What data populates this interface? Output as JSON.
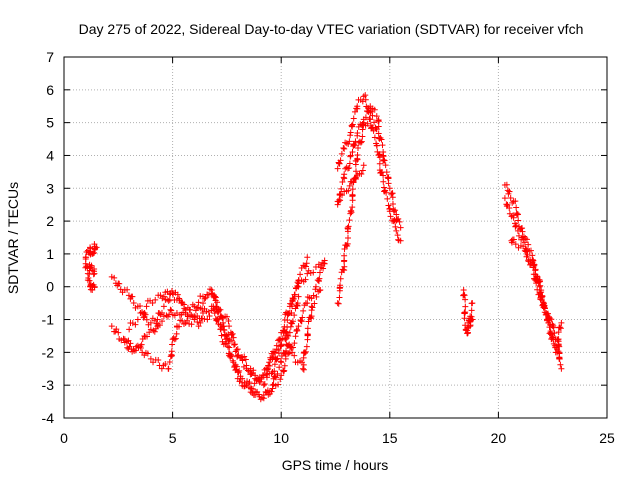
{
  "chart_data": {
    "type": "scatter",
    "title": "Day 275 of 2022, Sidereal Day-to-day VTEC variation (SDTVAR) for receiver vfch",
    "xlabel": "GPS time / hours",
    "ylabel": "SDTVAR / TECUs",
    "xlim": [
      0,
      25
    ],
    "ylim": [
      -4,
      7
    ],
    "xticks": [
      0,
      5,
      10,
      15,
      20,
      25
    ],
    "yticks": [
      -4,
      -3,
      -2,
      -1,
      0,
      1,
      2,
      3,
      4,
      5,
      6,
      7
    ],
    "grid": true,
    "marker": "+",
    "marker_color": "#ff0000",
    "series": [
      {
        "name": "SDTVAR",
        "segments": [
          {
            "x": [
              1.0,
              1.1,
              1.2,
              1.3,
              1.4,
              1.5
            ],
            "y": [
              0.9,
              1.1,
              1.2,
              1.0,
              1.3,
              1.2
            ]
          },
          {
            "x": [
              1.0,
              1.1,
              1.2,
              1.3,
              1.4
            ],
            "y": [
              0.7,
              0.4,
              0.6,
              0.5,
              0.4
            ]
          },
          {
            "x": [
              1.1,
              1.2,
              1.3,
              1.4
            ],
            "y": [
              0.2,
              0.0,
              -0.1,
              0.0
            ]
          },
          {
            "x": [
              2.2,
              2.5,
              2.8,
              3.1,
              3.4,
              3.7,
              4.0,
              4.3,
              4.6,
              4.9,
              5.2,
              5.6,
              6.0,
              6.4,
              6.8,
              7.2,
              7.6,
              8.0,
              8.4,
              8.8,
              9.2,
              9.6,
              10.0,
              10.4,
              10.8,
              11.2
            ],
            "y": [
              0.3,
              0.1,
              -0.1,
              -0.3,
              -0.6,
              -0.9,
              -1.1,
              -1.0,
              -0.6,
              -0.2,
              -0.4,
              -0.7,
              -0.9,
              -0.5,
              -0.2,
              -0.9,
              -1.6,
              -2.1,
              -2.5,
              -2.7,
              -3.0,
              -2.6,
              -1.8,
              -0.8,
              0.2,
              0.9
            ]
          },
          {
            "x": [
              2.2,
              2.5,
              2.8,
              3.1,
              3.4,
              3.7,
              4.0,
              4.3,
              4.6,
              4.9,
              5.2,
              5.6,
              6.0,
              6.4,
              6.8,
              7.2,
              7.6,
              8.0,
              8.4,
              8.8,
              9.2,
              9.6,
              10.0,
              10.4,
              10.8
            ],
            "y": [
              -1.2,
              -1.4,
              -1.7,
              -1.9,
              -1.8,
              -1.5,
              -1.3,
              -1.2,
              -0.9,
              -0.7,
              -0.8,
              -1.1,
              -1.0,
              -0.8,
              -0.6,
              -1.3,
              -2.1,
              -2.6,
              -3.0,
              -3.3,
              -3.4,
              -3.0,
              -2.3,
              -1.4,
              -0.3
            ]
          },
          {
            "x": [
              2.8,
              3.2,
              3.6,
              4.0,
              4.4,
              4.8,
              5.2,
              5.6,
              6.0,
              6.4,
              6.8,
              7.2,
              7.6,
              8.0,
              8.4,
              8.8,
              9.2,
              9.6,
              10.0,
              10.4,
              10.8,
              11.2,
              11.6,
              12.0
            ],
            "y": [
              -1.6,
              -1.9,
              -2.0,
              -2.2,
              -2.4,
              -2.5,
              -1.2,
              -0.8,
              -0.6,
              -0.3,
              -0.1,
              -0.7,
              -1.2,
              -1.9,
              -2.4,
              -2.8,
              -2.7,
              -2.2,
              -1.4,
              -0.6,
              0.1,
              0.4,
              0.6,
              0.7
            ]
          },
          {
            "x": [
              3.0,
              3.4,
              3.8,
              4.2,
              4.6,
              5.0,
              5.4,
              5.8,
              6.2,
              6.6,
              7.0,
              7.4,
              7.8,
              8.2,
              8.6,
              9.0,
              9.4,
              9.8,
              10.2,
              10.6,
              11.0,
              11.4,
              11.8
            ],
            "y": [
              -1.3,
              -1.0,
              -0.6,
              -0.4,
              -0.3,
              -0.2,
              -0.5,
              -0.9,
              -1.2,
              -1.0,
              -0.6,
              -1.5,
              -2.3,
              -2.8,
              -3.1,
              -2.9,
              -2.4,
              -1.9,
              -1.6,
              -2.1,
              -2.5,
              -0.6,
              -0.1
            ]
          },
          {
            "x": [
              8.0,
              8.4,
              8.8,
              9.2,
              9.6,
              10.0,
              10.4,
              10.8,
              11.2,
              11.6,
              12.0
            ],
            "y": [
              -2.8,
              -3.0,
              -3.2,
              -3.3,
              -3.1,
              -2.7,
              -2.0,
              -1.2,
              -0.5,
              0.0,
              0.8
            ]
          },
          {
            "x": [
              12.6,
              12.9,
              13.2,
              13.5,
              13.8,
              14.1,
              14.4,
              14.7,
              15.0,
              15.3,
              15.5
            ],
            "y": [
              -0.5,
              0.8,
              2.3,
              3.9,
              5.0,
              5.1,
              4.3,
              3.2,
              2.3,
              1.7,
              1.4
            ]
          },
          {
            "x": [
              12.6,
              12.9,
              13.2,
              13.5,
              13.8,
              14.1,
              14.4,
              14.7,
              15.0,
              15.3,
              15.5
            ],
            "y": [
              2.5,
              3.3,
              4.0,
              4.6,
              5.1,
              5.5,
              5.2,
              4.0,
              3.0,
              2.2,
              1.8
            ]
          },
          {
            "x": [
              12.6,
              12.9,
              13.2,
              13.5,
              13.8,
              14.1,
              14.4
            ],
            "y": [
              3.6,
              4.2,
              4.7,
              5.5,
              5.8,
              5.3,
              4.8
            ]
          },
          {
            "x": [
              12.6,
              12.9,
              13.2,
              13.5,
              13.8
            ],
            "y": [
              2.6,
              2.9,
              3.2,
              3.4,
              3.7
            ]
          },
          {
            "x": [
              18.4,
              18.5,
              18.6,
              18.7,
              18.8
            ],
            "y": [
              -0.1,
              -1.3,
              -1.4,
              -0.9,
              -0.5
            ]
          },
          {
            "x": [
              18.6,
              18.7,
              18.8
            ],
            "y": [
              -1.1,
              -1.2,
              -1.0
            ]
          },
          {
            "x": [
              20.3,
              20.5,
              20.7,
              20.9,
              21.1,
              21.3,
              21.5,
              21.7,
              21.9,
              22.1,
              22.3,
              22.5,
              22.7,
              22.9
            ],
            "y": [
              3.1,
              2.9,
              2.6,
              2.2,
              1.5,
              1.1,
              0.7,
              0.2,
              -0.2,
              -0.6,
              -1.0,
              -1.2,
              -1.6,
              -2.5
            ]
          },
          {
            "x": [
              20.3,
              20.5,
              20.7,
              20.9,
              21.5,
              21.7,
              21.9,
              22.1,
              22.3,
              22.5,
              22.7,
              22.9
            ],
            "y": [
              2.7,
              2.4,
              2.1,
              1.7,
              1.1,
              0.5,
              0.0,
              -0.5,
              -1.1,
              -1.5,
              -1.9,
              -1.1
            ]
          },
          {
            "x": [
              20.6,
              20.8,
              21.6,
              21.8,
              22.0,
              22.2,
              22.4,
              22.6,
              22.8
            ],
            "y": [
              1.4,
              1.3,
              0.8,
              0.3,
              -0.4,
              -0.8,
              -1.4,
              -1.8,
              -2.2
            ]
          }
        ]
      }
    ]
  }
}
